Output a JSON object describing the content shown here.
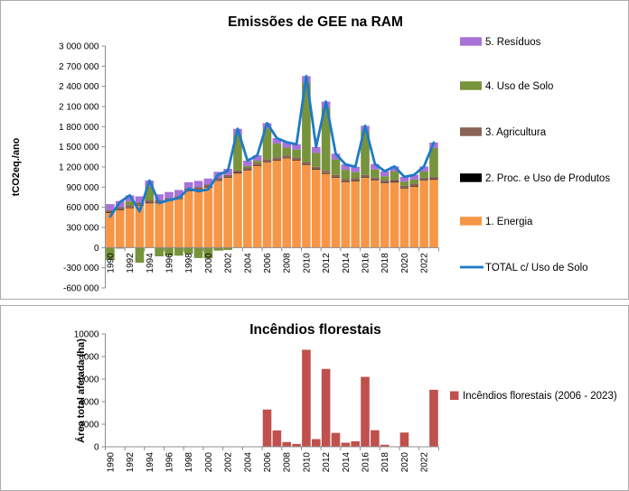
{
  "page": {
    "background": "#FFFFFF",
    "panel_border": "#ABABAB",
    "axis_color": "#8C8C8C"
  },
  "emissions_panel": {
    "title": "Emissões de GEE na RAM",
    "y_axis_label": "tCO2eq./ano",
    "legend": [
      {
        "label": "5. Resíduos",
        "color": "#A873D8",
        "marker": "box"
      },
      {
        "label": "4. Uso de Solo",
        "color": "#77933C",
        "marker": "box"
      },
      {
        "label": "3. Agricultura",
        "color": "#8A6456",
        "marker": "box"
      },
      {
        "label": "2. Proc. e Uso de Produtos",
        "color": "#000000",
        "marker": "box"
      },
      {
        "label": "1. Energia",
        "color": "#F79646",
        "marker": "box"
      },
      {
        "label": "TOTAL c/ Uso de Solo",
        "color": "#1E7AC6",
        "marker": "line"
      }
    ]
  },
  "fires_panel": {
    "title": "Incêndios florestais",
    "y_axis_label": "Área total afetada (ha)",
    "legend": [
      {
        "label": "Incêndios florestais (2006 - 2023)",
        "color": "#C0504D",
        "marker": "box"
      }
    ]
  },
  "chart_data": [
    {
      "type": "bar",
      "subtype": "stacked-columns-with-total-line",
      "title": "Emissões de GEE na RAM",
      "xlabel": "",
      "ylabel": "tCO2eq./ano",
      "ylim": [
        -600000,
        3000000
      ],
      "ytick_step": 300000,
      "ytick_format": "thousands-space",
      "xtick_every": 2,
      "grid": false,
      "legend_position": "right",
      "categories": [
        1990,
        1991,
        1992,
        1993,
        1994,
        1995,
        1996,
        1997,
        1998,
        1999,
        2000,
        2001,
        2002,
        2003,
        2004,
        2005,
        2006,
        2007,
        2008,
        2009,
        2010,
        2011,
        2012,
        2013,
        2014,
        2015,
        2016,
        2017,
        2018,
        2019,
        2020,
        2021,
        2022,
        2023
      ],
      "series": [
        {
          "name": "1. Energia",
          "color": "#F79646",
          "values": [
            515000,
            560000,
            590000,
            630000,
            660000,
            660000,
            695000,
            725000,
            840000,
            860000,
            895000,
            995000,
            1040000,
            1105000,
            1150000,
            1220000,
            1270000,
            1300000,
            1330000,
            1300000,
            1230000,
            1160000,
            1100000,
            1040000,
            975000,
            990000,
            1040000,
            1000000,
            960000,
            970000,
            880000,
            910000,
            1000000,
            1010000
          ]
        },
        {
          "name": "2. Proc. e Uso de Produtos",
          "color": "#000000",
          "values": [
            8000,
            8000,
            8000,
            8000,
            8000,
            8000,
            8000,
            8000,
            8000,
            8000,
            8000,
            8000,
            8000,
            8000,
            8000,
            8000,
            8000,
            8000,
            8000,
            8000,
            8000,
            8000,
            8000,
            8000,
            8000,
            8000,
            8000,
            8000,
            8000,
            8000,
            8000,
            8000,
            8000,
            8000
          ]
        },
        {
          "name": "3. Agricultura",
          "color": "#8A6456",
          "values": [
            35000,
            35000,
            35000,
            35000,
            35000,
            35000,
            35000,
            35000,
            35000,
            35000,
            35000,
            35000,
            35000,
            35000,
            35000,
            35000,
            35000,
            35000,
            35000,
            35000,
            35000,
            35000,
            35000,
            35000,
            35000,
            35000,
            35000,
            35000,
            35000,
            35000,
            35000,
            35000,
            35000,
            35000
          ]
        },
        {
          "name": "4. Uso de Solo",
          "color": "#77933C",
          "values": [
            -185000,
            -15000,
            55000,
            -225000,
            205000,
            -130000,
            -120000,
            -120000,
            -95000,
            -155000,
            -160000,
            -45000,
            -35000,
            530000,
            20000,
            30000,
            460000,
            205000,
            115000,
            115000,
            1185000,
            205000,
            940000,
            230000,
            140000,
            90000,
            650000,
            120000,
            60000,
            120000,
            60000,
            60000,
            90000,
            430000
          ]
        },
        {
          "name": "5. Resíduos",
          "color": "#A873D8",
          "values": [
            90000,
            90000,
            90000,
            90000,
            90000,
            90000,
            90000,
            90000,
            90000,
            90000,
            90000,
            90000,
            90000,
            90000,
            80000,
            80000,
            80000,
            80000,
            80000,
            80000,
            95000,
            90000,
            90000,
            85000,
            80000,
            80000,
            80000,
            80000,
            75000,
            75000,
            70000,
            70000,
            75000,
            80000
          ]
        }
      ],
      "line_series": {
        "name": "TOTAL c/ Uso de Solo",
        "color": "#1E7AC6",
        "values": [
          463000,
          678000,
          778000,
          538000,
          998000,
          663000,
          708000,
          738000,
          878000,
          838000,
          868000,
          1083000,
          1138000,
          1768000,
          1293000,
          1373000,
          1853000,
          1628000,
          1568000,
          1538000,
          2553000,
          1498000,
          2173000,
          1398000,
          1238000,
          1203000,
          1813000,
          1243000,
          1138000,
          1208000,
          1053000,
          1083000,
          1208000,
          1563000
        ]
      }
    },
    {
      "type": "bar",
      "subtype": "columns",
      "title": "Incêndios florestais",
      "xlabel": "",
      "ylabel": "Área total afetada (ha)",
      "ylim": [
        0,
        10000
      ],
      "ytick_step": 2000,
      "ytick_format": "plain",
      "xtick_every": 2,
      "grid": false,
      "legend_position": "right",
      "categories": [
        1990,
        1991,
        1992,
        1993,
        1994,
        1995,
        1996,
        1997,
        1998,
        1999,
        2000,
        2001,
        2002,
        2003,
        2004,
        2005,
        2006,
        2007,
        2008,
        2009,
        2010,
        2011,
        2012,
        2013,
        2014,
        2015,
        2016,
        2017,
        2018,
        2019,
        2020,
        2021,
        2022,
        2023
      ],
      "series": [
        {
          "name": "Incêndios florestais (2006 - 2023)",
          "color": "#C0504D",
          "values": [
            0,
            0,
            0,
            0,
            0,
            0,
            0,
            0,
            0,
            0,
            0,
            0,
            0,
            0,
            0,
            0,
            3300,
            1450,
            420,
            250,
            8600,
            680,
            6900,
            1230,
            360,
            490,
            6200,
            1470,
            180,
            0,
            1260,
            0,
            40,
            5050
          ]
        }
      ]
    }
  ]
}
